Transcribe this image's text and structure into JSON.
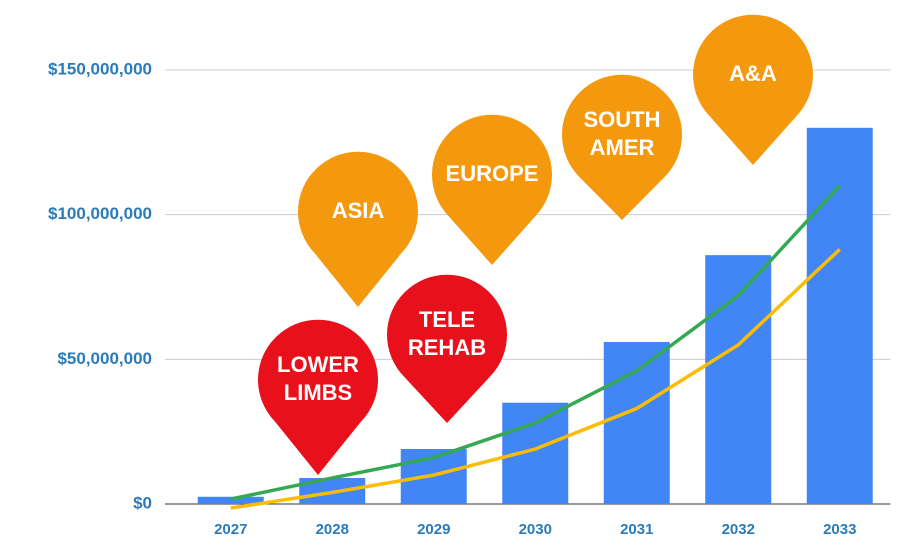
{
  "chart_data": {
    "type": "bar",
    "categories": [
      "2027",
      "2028",
      "2029",
      "2030",
      "2031",
      "2032",
      "2033"
    ],
    "series": [
      {
        "type": "bar",
        "color": "#4285f4",
        "values": [
          2500000,
          9000000,
          19000000,
          35000000,
          56000000,
          86000000,
          130000000
        ]
      },
      {
        "type": "line",
        "color": "#34a853",
        "values": [
          1700000,
          9000000,
          16000000,
          28000000,
          46000000,
          72000000,
          110000000
        ]
      },
      {
        "type": "line",
        "color": "#fbbc04",
        "values": [
          -1400000,
          4000000,
          10000000,
          19000000,
          33000000,
          55000000,
          88000000
        ]
      }
    ],
    "ylim": [
      -2000000,
      160000000
    ],
    "yticks": [
      {
        "value": 0,
        "label": "$0"
      },
      {
        "value": 50000000,
        "label": "$50,000,000"
      },
      {
        "value": 100000000,
        "label": "$100,000,000"
      },
      {
        "value": 150000000,
        "label": "$150,000,000"
      }
    ],
    "grid": true,
    "annotations": [
      {
        "lines": [
          "LOWER",
          "LIMBS"
        ],
        "color": "#e8101a"
      },
      {
        "lines": [
          "ASIA"
        ],
        "color": "#f4990e"
      },
      {
        "lines": [
          "TELE",
          "REHAB"
        ],
        "color": "#e8101a"
      },
      {
        "lines": [
          "EUROPE"
        ],
        "color": "#f4990e"
      },
      {
        "lines": [
          "SOUTH",
          "AMER"
        ],
        "color": "#f4990e"
      },
      {
        "lines": [
          "A&A"
        ],
        "color": "#f4990e"
      }
    ]
  }
}
